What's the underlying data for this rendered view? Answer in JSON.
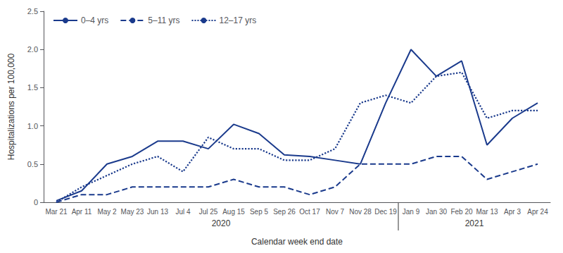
{
  "chart_data": {
    "type": "line",
    "categories": [
      "Mar 21",
      "Apr 11",
      "May 2",
      "May 23",
      "Jun 13",
      "Jul 4",
      "Jul 25",
      "Aug 15",
      "Sep 5",
      "Sep 26",
      "Oct 17",
      "Nov 7",
      "Nov 28",
      "Dec 19",
      "Jan 9",
      "Jan 30",
      "Feb 20",
      "Mar 13",
      "Apr 3",
      "Apr 24"
    ],
    "series": [
      {
        "name": "0–4 yrs",
        "color": "#1a3a8c",
        "line_style": "solid",
        "values": [
          0.02,
          0.15,
          0.5,
          0.6,
          0.8,
          0.8,
          0.7,
          1.02,
          0.9,
          0.62,
          0.6,
          0.55,
          0.5,
          1.3,
          2.0,
          1.65,
          1.85,
          0.75,
          1.1,
          1.3
        ]
      },
      {
        "name": "5–11 yrs",
        "color": "#1a3a8c",
        "line_style": "dashed",
        "values": [
          0.0,
          0.1,
          0.1,
          0.2,
          0.2,
          0.2,
          0.2,
          0.3,
          0.2,
          0.2,
          0.1,
          0.2,
          0.5,
          0.5,
          0.5,
          0.6,
          0.6,
          0.3,
          0.4,
          0.5
        ]
      },
      {
        "name": "12–17 yrs",
        "color": "#1a3a8c",
        "line_style": "dotted",
        "values": [
          0.0,
          0.2,
          0.35,
          0.5,
          0.6,
          0.4,
          0.85,
          0.7,
          0.7,
          0.55,
          0.55,
          0.7,
          1.3,
          1.4,
          1.3,
          1.65,
          1.7,
          1.1,
          1.2,
          1.2
        ]
      }
    ],
    "ylim": [
      0,
      2.5
    ],
    "yticks": [
      0,
      0.5,
      {
        "value": 1.0,
        "label": "1.0"
      },
      {
        "value": 1.5,
        "label": "1.5"
      },
      {
        "value": 2.0,
        "label": "2.0"
      },
      2.5
    ],
    "ylabel": "Hospitalizations per 100,000",
    "xlabel": "Calendar week end date",
    "annotations": [
      {
        "text": "2020",
        "from": "Mar 21",
        "to": "Dec 19"
      },
      {
        "text": "2021",
        "from": "Jan 9",
        "to": "Apr 24"
      }
    ],
    "legend": "upper left",
    "grid": false
  }
}
